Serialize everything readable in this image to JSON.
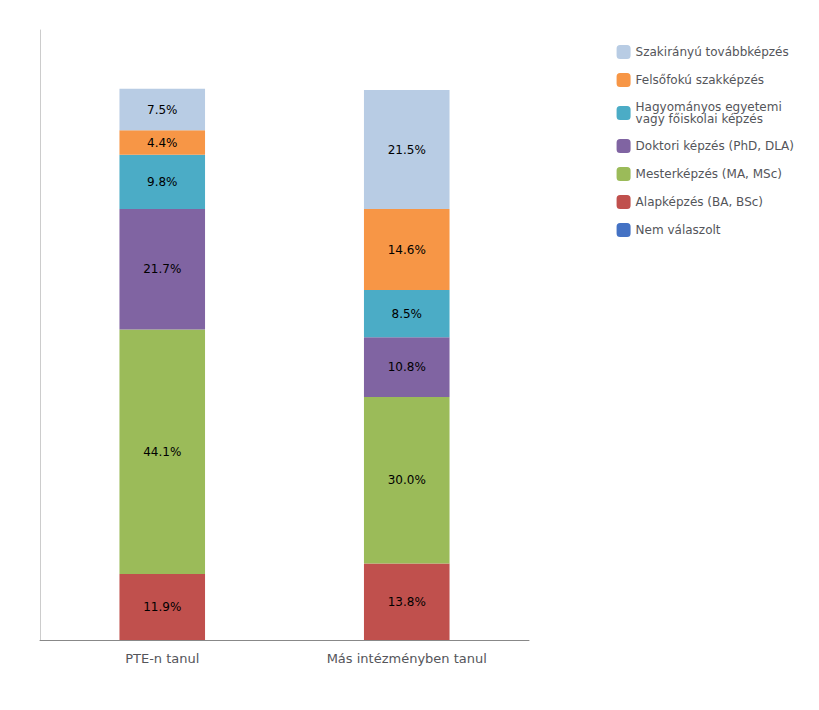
{
  "chart_data": {
    "type": "bar",
    "stacked": true,
    "categories": [
      "PTE-n tanul",
      "Más intézményben tanul"
    ],
    "series": [
      {
        "name": "Nem válaszolt",
        "color": "#4472C4",
        "values": [
          0.0,
          0.0
        ],
        "value_labels": [
          null,
          null
        ]
      },
      {
        "name": "Alapképzés (BA, BSc)",
        "color": "#C0504D",
        "values": [
          11.9,
          13.8
        ],
        "value_labels": [
          "11.9%",
          "13.8%"
        ]
      },
      {
        "name": "Mesterképzés (MA, MSc)",
        "color": "#9BBB59",
        "values": [
          44.1,
          30.0
        ],
        "value_labels": [
          "44.1%",
          "30.0%"
        ]
      },
      {
        "name": "Doktori képzés (PhD, DLA)",
        "color": "#8064A2",
        "values": [
          21.7,
          10.8
        ],
        "value_labels": [
          "21.7%",
          "10.8%"
        ]
      },
      {
        "name": "Hagyományos egyetemi\nvagy főiskolai képzés",
        "color": "#4BACC6",
        "values": [
          9.8,
          8.5
        ],
        "value_labels": [
          "9.8%",
          "8.5%"
        ]
      },
      {
        "name": "Felsőfokú szakképzés",
        "color": "#F79646",
        "values": [
          4.4,
          14.6
        ],
        "value_labels": [
          "4.4%",
          "14.6%"
        ]
      },
      {
        "name": "Szakirányú továbbképzés",
        "color": "#B8CCE4",
        "values": [
          7.5,
          21.5
        ],
        "value_labels": [
          "7.5%",
          "21.5%"
        ]
      }
    ],
    "ylim": [
      0,
      110
    ],
    "grid": false,
    "legend": "upper right",
    "data_labels": true,
    "tick_labels": "x"
  }
}
